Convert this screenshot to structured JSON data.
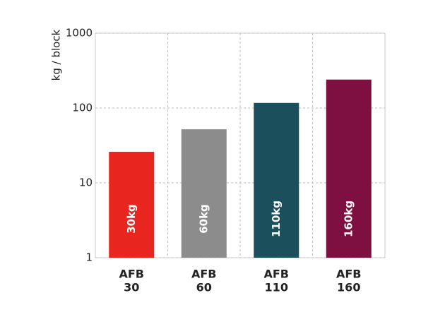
{
  "chart_data": {
    "type": "bar",
    "y_label": "kg / block",
    "categories": [
      [
        "AFB",
        "30"
      ],
      [
        "AFB",
        "60"
      ],
      [
        "AFB",
        "110"
      ],
      [
        "AFB",
        "160"
      ]
    ],
    "values": [
      26,
      52,
      117,
      240
    ],
    "bar_labels": [
      "30kg",
      "60kg",
      "110kg",
      "160kg"
    ],
    "colors": [
      "#e8251f",
      "#8c8c8c",
      "#1b4f5c",
      "#7e0f41"
    ],
    "ylim": [
      1,
      1000
    ],
    "yticks": [
      1,
      10,
      100,
      1000
    ],
    "log_y": true,
    "grid": true
  }
}
